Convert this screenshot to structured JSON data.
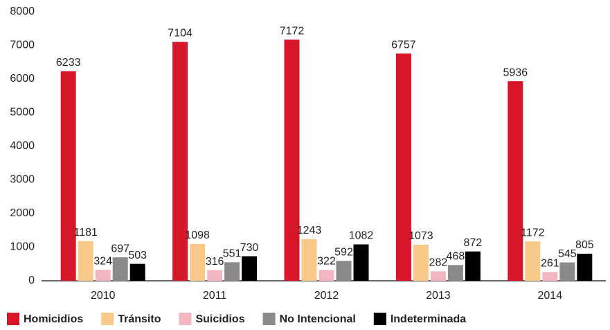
{
  "chart_data": {
    "type": "bar",
    "categories": [
      "2010",
      "2011",
      "2012",
      "2013",
      "2014"
    ],
    "series": [
      {
        "name": "Homicidios",
        "color": "#d7162a",
        "values": [
          6233,
          7104,
          7172,
          6757,
          5936
        ]
      },
      {
        "name": "Tránsito",
        "color": "#f9c98a",
        "values": [
          1181,
          1098,
          1243,
          1073,
          1172
        ]
      },
      {
        "name": "Suicidios",
        "color": "#f2b6c0",
        "values": [
          324,
          316,
          322,
          282,
          261
        ]
      },
      {
        "name": "No Intencional",
        "color": "#8a8a8a",
        "values": [
          697,
          551,
          592,
          468,
          545
        ]
      },
      {
        "name": "Indeterminada",
        "color": "#000000",
        "values": [
          503,
          730,
          1082,
          872,
          805
        ]
      }
    ],
    "ylim": [
      0,
      8000
    ],
    "yticks": [
      0,
      1000,
      2000,
      3000,
      4000,
      5000,
      6000,
      7000,
      8000
    ],
    "grid": false,
    "legend": "bottom"
  }
}
